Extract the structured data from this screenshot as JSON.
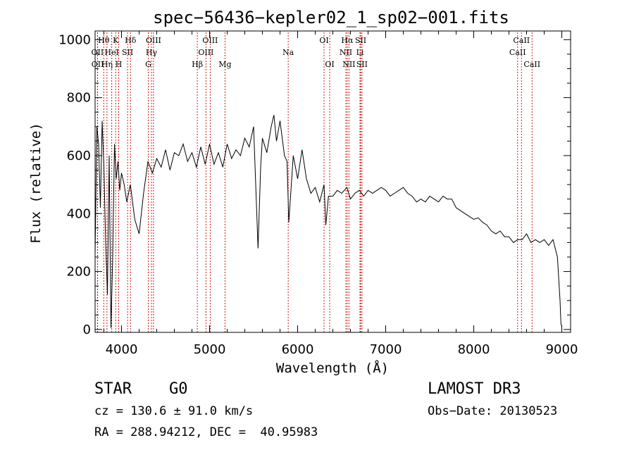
{
  "chart_data": {
    "type": "line",
    "title": "spec−56436−kepler02_1_sp02−001.fits",
    "xlabel": "Wavelength (Å)",
    "ylabel": "Flux (relative)",
    "xlim": [
      3700,
      9100
    ],
    "ylim": [
      -10,
      1030
    ],
    "x_ticks": [
      4000,
      5000,
      6000,
      7000,
      8000,
      9000
    ],
    "y_ticks": [
      0,
      200,
      400,
      600,
      800,
      1000
    ],
    "series": [
      {
        "name": "flux",
        "x": [
          3700,
          3720,
          3740,
          3760,
          3780,
          3800,
          3820,
          3840,
          3860,
          3880,
          3900,
          3920,
          3940,
          3960,
          3980,
          4000,
          4030,
          4060,
          4100,
          4150,
          4200,
          4250,
          4300,
          4350,
          4400,
          4450,
          4500,
          4550,
          4600,
          4650,
          4700,
          4750,
          4800,
          4850,
          4900,
          4950,
          5000,
          5050,
          5100,
          5150,
          5200,
          5250,
          5300,
          5350,
          5400,
          5450,
          5500,
          5550,
          5580,
          5600,
          5650,
          5700,
          5730,
          5760,
          5800,
          5850,
          5880,
          5900,
          5950,
          6000,
          6050,
          6100,
          6150,
          6200,
          6250,
          6300,
          6320,
          6350,
          6400,
          6450,
          6500,
          6560,
          6600,
          6650,
          6700,
          6750,
          6800,
          6850,
          6900,
          6950,
          7000,
          7050,
          7100,
          7150,
          7200,
          7250,
          7300,
          7350,
          7400,
          7450,
          7500,
          7550,
          7600,
          7650,
          7700,
          7750,
          7800,
          7850,
          7900,
          7950,
          8000,
          8050,
          8100,
          8150,
          8200,
          8250,
          8300,
          8350,
          8400,
          8450,
          8500,
          8550,
          8600,
          8650,
          8700,
          8750,
          8800,
          8850,
          8900,
          8950,
          8980,
          8990,
          9000
        ],
        "y": [
          260,
          700,
          640,
          420,
          720,
          560,
          300,
          120,
          600,
          5,
          250,
          640,
          520,
          580,
          480,
          540,
          500,
          440,
          500,
          380,
          330,
          470,
          580,
          540,
          590,
          560,
          620,
          550,
          610,
          600,
          640,
          580,
          610,
          560,
          630,
          570,
          640,
          570,
          610,
          560,
          640,
          590,
          620,
          600,
          660,
          630,
          700,
          280,
          560,
          660,
          610,
          700,
          740,
          650,
          720,
          600,
          580,
          370,
          600,
          520,
          620,
          520,
          470,
          490,
          440,
          500,
          360,
          460,
          460,
          480,
          470,
          490,
          450,
          470,
          480,
          460,
          480,
          470,
          480,
          490,
          480,
          460,
          470,
          480,
          490,
          470,
          460,
          440,
          450,
          440,
          460,
          450,
          440,
          460,
          450,
          450,
          420,
          410,
          400,
          390,
          380,
          385,
          370,
          360,
          340,
          330,
          340,
          320,
          320,
          300,
          310,
          310,
          330,
          300,
          310,
          300,
          310,
          290,
          310,
          250,
          100,
          20,
          10
        ]
      }
    ],
    "lines": [
      {
        "name": "Hθ",
        "x": 3798,
        "row": 1
      },
      {
        "name": "OII",
        "x": 3727,
        "row": 2
      },
      {
        "name": "OII",
        "x": 3729,
        "row": 3
      },
      {
        "name": "K",
        "x": 3934,
        "row": 1
      },
      {
        "name": "Hδ",
        "x": 4102,
        "row": 1
      },
      {
        "name": "HeI",
        "x": 3889,
        "row": 2
      },
      {
        "name": "SII",
        "x": 4069,
        "row": 2
      },
      {
        "name": "Hη",
        "x": 3835,
        "row": 3
      },
      {
        "name": "H",
        "x": 3968,
        "row": 3
      },
      {
        "name": "OIII",
        "x": 4363,
        "row": 1
      },
      {
        "name": "Hγ",
        "x": 4340,
        "row": 2
      },
      {
        "name": "G",
        "x": 4304,
        "row": 3
      },
      {
        "name": "OIII",
        "x": 5007,
        "row": 1
      },
      {
        "name": "OIII",
        "x": 4959,
        "row": 2
      },
      {
        "name": "Hβ",
        "x": 4861,
        "row": 3
      },
      {
        "name": "Mg",
        "x": 5175,
        "row": 3
      },
      {
        "name": "Na",
        "x": 5893,
        "row": 2
      },
      {
        "name": "OI",
        "x": 6300,
        "row": 1
      },
      {
        "name": "OI",
        "x": 6364,
        "row": 3
      },
      {
        "name": "Hα",
        "x": 6563,
        "row": 1
      },
      {
        "name": "SII",
        "x": 6716,
        "row": 1
      },
      {
        "name": "NII",
        "x": 6548,
        "row": 2
      },
      {
        "name": "Li",
        "x": 6708,
        "row": 2
      },
      {
        "name": "NII",
        "x": 6583,
        "row": 3
      },
      {
        "name": "SII",
        "x": 6731,
        "row": 3
      },
      {
        "name": "CaII",
        "x": 8542,
        "row": 1
      },
      {
        "name": "CaII",
        "x": 8498,
        "row": 2
      },
      {
        "name": "CaII",
        "x": 8662,
        "row": 3
      }
    ]
  },
  "info": {
    "class_label": "STAR",
    "subclass": "G0",
    "cz": "cz = 130.6 ± 91.0 km/s",
    "coords": "RA = 288.94212, DEC =  40.95983",
    "survey": "LAMOST DR3",
    "obs_date": "Obs−Date: 20130523"
  }
}
